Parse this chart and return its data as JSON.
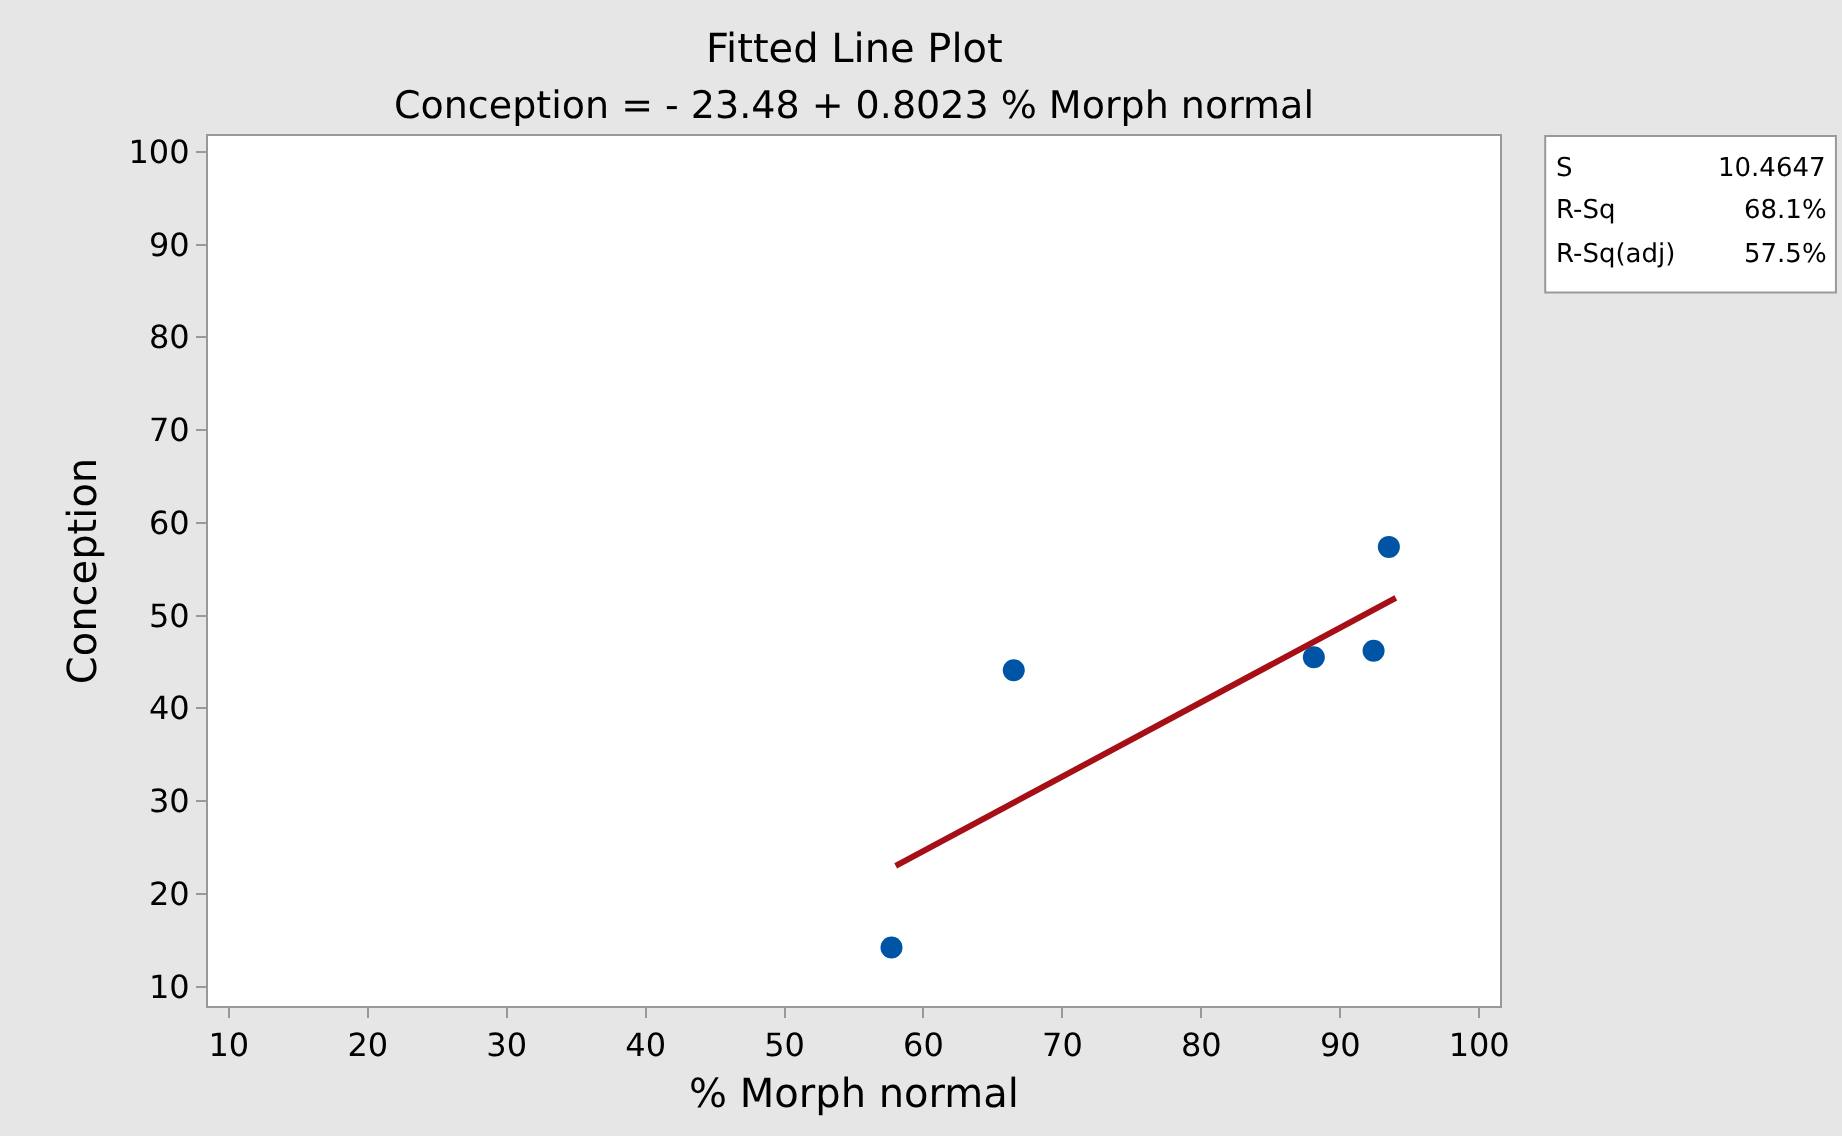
{
  "chart_data": {
    "type": "scatter",
    "title": "Fitted Line Plot",
    "subtitle": "Conception = - 23.48 + 0.8023 % Morph normal",
    "xlabel": "% Morph normal",
    "ylabel": "Conception",
    "series": [
      {
        "color": "#0054a6",
        "marker": "circle",
        "x": [
          57.7,
          66.5,
          88.1,
          92.4,
          93.5
        ],
        "values": [
          14.2,
          44.1,
          45.5,
          46.2,
          57.4
        ]
      },
      {
        "type": "line",
        "color": "#a50f15",
        "x": [
          58,
          94
        ],
        "values": [
          23,
          51.9
        ]
      }
    ],
    "xlim": [
      8.5,
      101.5
    ],
    "xticks": [
      10,
      20,
      30,
      40,
      50,
      60,
      70,
      80,
      90,
      100
    ],
    "ylim": [
      7.9,
      101.7
    ],
    "yticks": [
      10,
      20,
      30,
      40,
      50,
      60,
      70,
      80,
      90,
      100
    ],
    "grid": false,
    "legend": false,
    "annotations": [
      "S",
      "10.4647",
      "R-Sq",
      "68.1%",
      "R-Sq(adj)",
      "57.5%"
    ]
  }
}
